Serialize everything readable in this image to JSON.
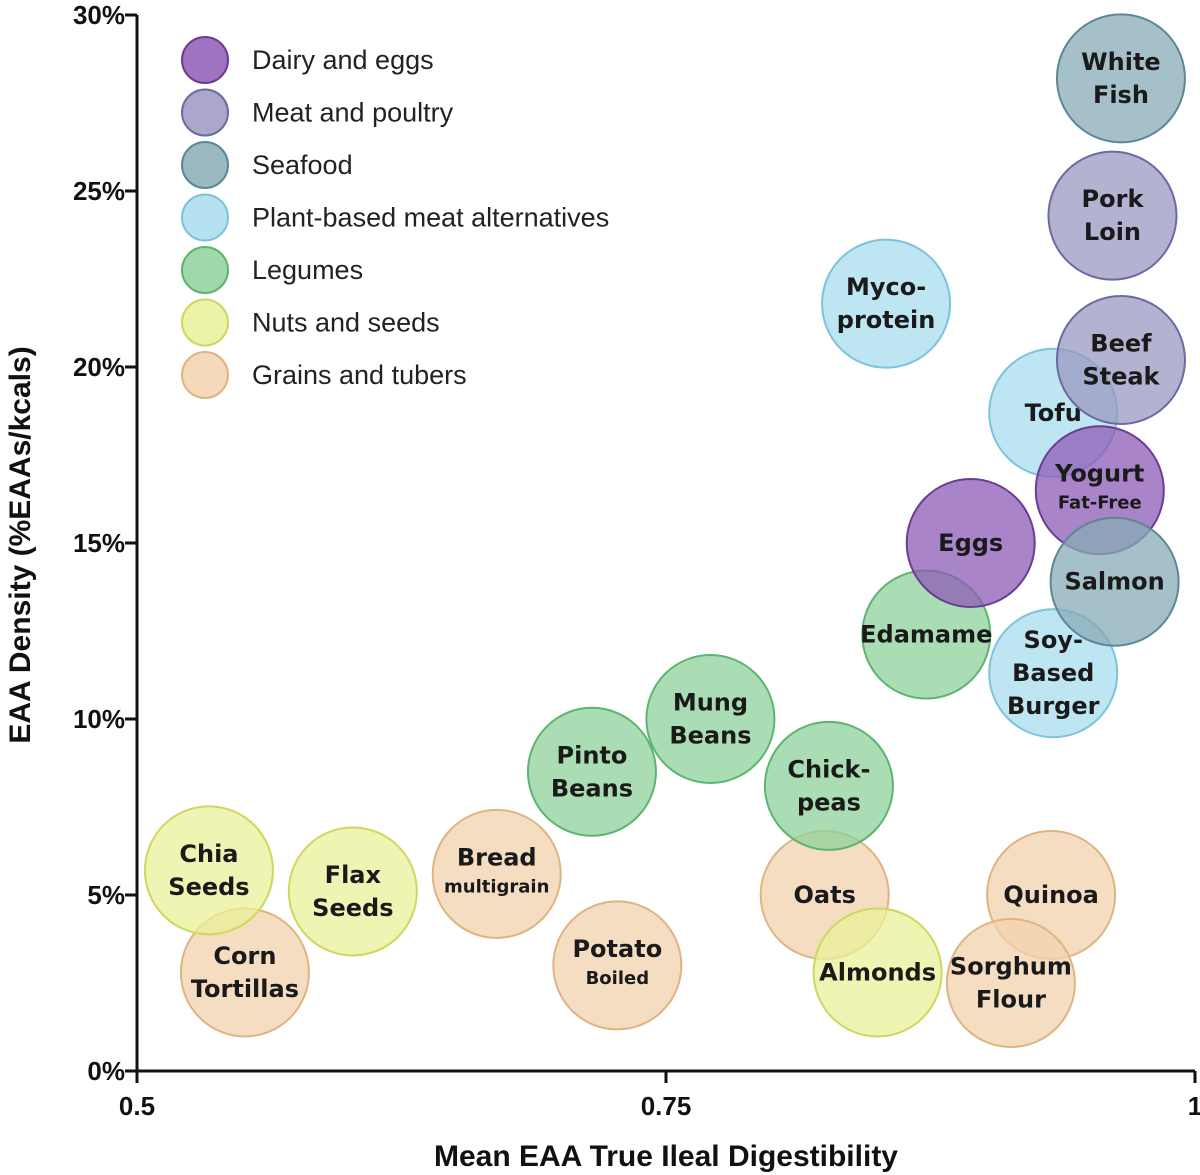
{
  "chart_data": {
    "type": "scatter",
    "title": "",
    "xlabel": "Mean EAA True Ileal Digestibility",
    "ylabel": "EAA Density (%EAAs/kcals)",
    "xlim": [
      0.5,
      1.0
    ],
    "ylim": [
      0,
      30
    ],
    "x_ticks": [
      {
        "value": 0.5,
        "label": "0.5"
      },
      {
        "value": 0.75,
        "label": "0.75"
      },
      {
        "value": 1.0,
        "label": "1"
      }
    ],
    "y_ticks": [
      {
        "value": 0,
        "label": "0%"
      },
      {
        "value": 5,
        "label": "5%"
      },
      {
        "value": 10,
        "label": "10%"
      },
      {
        "value": 15,
        "label": "15%"
      },
      {
        "value": 20,
        "label": "20%"
      },
      {
        "value": 25,
        "label": "25%"
      },
      {
        "value": 30,
        "label": "30%"
      }
    ],
    "grid": false,
    "legend_position": "top-left",
    "categories": [
      {
        "key": "dairy",
        "name": "Dairy and eggs",
        "fill": "#8e5bb5",
        "stroke": "#6a3d94"
      },
      {
        "key": "meat",
        "name": "Meat and poultry",
        "fill": "#9b98c2",
        "stroke": "#6c6aa3"
      },
      {
        "key": "seafood",
        "name": "Seafood",
        "fill": "#87abb5",
        "stroke": "#5c8896"
      },
      {
        "key": "plant",
        "name": "Plant-based meat alternatives",
        "fill": "#a8dced",
        "stroke": "#7cc3db"
      },
      {
        "key": "legumes",
        "name": "Legumes",
        "fill": "#8fd19b",
        "stroke": "#5cb56f"
      },
      {
        "key": "nuts",
        "name": "Nuts and seeds",
        "fill": "#e9f098",
        "stroke": "#cfd75f"
      },
      {
        "key": "grains",
        "name": "Grains and tubers",
        "fill": "#f2d2ae",
        "stroke": "#dfb483"
      }
    ],
    "points": [
      {
        "name": "Grains: Corn Tortillas",
        "category": "grains",
        "x": 0.551,
        "y": 2.8,
        "lines": [
          "Corn",
          "Tortillas"
        ]
      },
      {
        "name": "Grains: Bread multigrain",
        "category": "grains",
        "x": 0.67,
        "y": 5.6,
        "lines": [
          "Bread"
        ],
        "sub": "multigrain"
      },
      {
        "name": "Grains: Potato Boiled",
        "category": "grains",
        "x": 0.727,
        "y": 3.0,
        "lines": [
          "Potato"
        ],
        "sub": "Boiled"
      },
      {
        "name": "Grains: Oats",
        "category": "grains",
        "x": 0.825,
        "y": 5.0,
        "lines": [
          "Oats"
        ]
      },
      {
        "name": "Grains: Quinoa",
        "category": "grains",
        "x": 0.932,
        "y": 5.0,
        "lines": [
          "Quinoa"
        ]
      },
      {
        "name": "Grains: Sorghum Flour",
        "category": "grains",
        "x": 0.913,
        "y": 2.5,
        "lines": [
          "Sorghum",
          "Flour"
        ]
      },
      {
        "name": "Nuts: Chia Seeds",
        "category": "nuts",
        "x": 0.534,
        "y": 5.7,
        "lines": [
          "Chia",
          "Seeds"
        ]
      },
      {
        "name": "Nuts: Flax Seeds",
        "category": "nuts",
        "x": 0.602,
        "y": 5.1,
        "lines": [
          "Flax",
          "Seeds"
        ]
      },
      {
        "name": "Nuts: Almonds",
        "category": "nuts",
        "x": 0.85,
        "y": 2.8,
        "lines": [
          "Almonds"
        ]
      },
      {
        "name": "Legumes: Pinto Beans",
        "category": "legumes",
        "x": 0.715,
        "y": 8.5,
        "lines": [
          "Pinto",
          "Beans"
        ]
      },
      {
        "name": "Legumes: Mung Beans",
        "category": "legumes",
        "x": 0.771,
        "y": 10.0,
        "lines": [
          "Mung",
          "Beans"
        ]
      },
      {
        "name": "Legumes: Chickpeas",
        "category": "legumes",
        "x": 0.827,
        "y": 8.1,
        "lines": [
          "Chick-",
          "peas"
        ]
      },
      {
        "name": "Legumes: Edamame",
        "category": "legumes",
        "x": 0.873,
        "y": 12.4,
        "lines": [
          "Edamame"
        ]
      },
      {
        "name": "Plant: Mycoprotein",
        "category": "plant",
        "x": 0.854,
        "y": 21.8,
        "lines": [
          "Myco-",
          "protein"
        ]
      },
      {
        "name": "Plant: Tofu",
        "category": "plant",
        "x": 0.933,
        "y": 18.7,
        "lines": [
          "Tofu"
        ]
      },
      {
        "name": "Plant: Soy-Based Burger",
        "category": "plant",
        "x": 0.933,
        "y": 11.3,
        "lines": [
          "Soy-",
          "Based",
          "Burger"
        ]
      },
      {
        "name": "Dairy: Eggs",
        "category": "dairy",
        "x": 0.894,
        "y": 15.0,
        "lines": [
          "Eggs"
        ]
      },
      {
        "name": "Dairy: Yogurt Fat-Free",
        "category": "dairy",
        "x": 0.955,
        "y": 16.5,
        "lines": [
          "Yogurt"
        ],
        "sub": "Fat-Free"
      },
      {
        "name": "Seafood: Salmon",
        "category": "seafood",
        "x": 0.962,
        "y": 13.9,
        "lines": [
          "Salmon"
        ]
      },
      {
        "name": "Seafood: White Fish",
        "category": "seafood",
        "x": 0.965,
        "y": 28.2,
        "lines": [
          "White",
          "Fish"
        ]
      },
      {
        "name": "Meat: Pork Loin",
        "category": "meat",
        "x": 0.961,
        "y": 24.3,
        "lines": [
          "Pork",
          "Loin"
        ]
      },
      {
        "name": "Meat: Beef Steak",
        "category": "meat",
        "x": 0.965,
        "y": 20.2,
        "lines": [
          "Beef",
          "Steak"
        ]
      }
    ]
  }
}
